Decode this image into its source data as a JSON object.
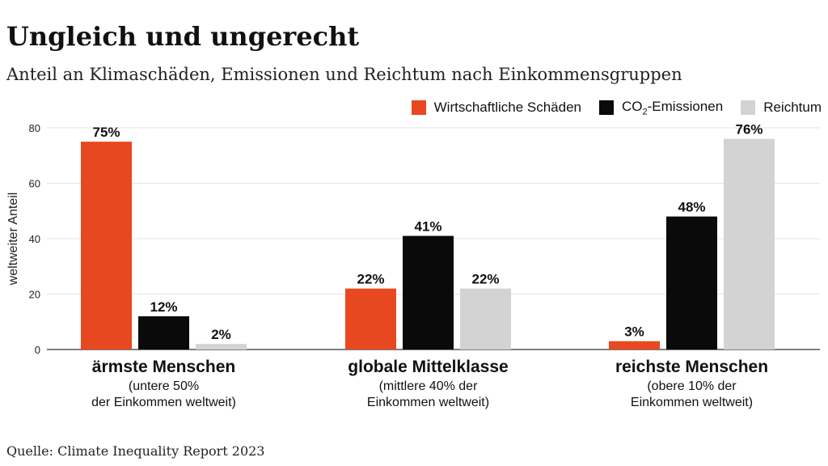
{
  "title": "Ungleich und ungerecht",
  "subtitle": "Anteil an Klimaschäden, Emissionen und Reichtum nach Einkommensgruppen",
  "source": "Quelle: Climate Inequality Report 2023",
  "legend": {
    "damage": "Wirtschaftliche Schäden",
    "co2_prefix": "CO",
    "co2_sub": "2",
    "co2_suffix": "-Emissionen",
    "wealth": "Reichtum"
  },
  "chart_data": {
    "type": "bar",
    "ylabel": "weltweiter Anteil",
    "ylim": [
      0,
      80
    ],
    "yticks": [
      0,
      20,
      40,
      60,
      80
    ],
    "grid": true,
    "legend_position": "top-right",
    "categories": [
      {
        "title": "ärmste Menschen",
        "sub1": "(untere 50%",
        "sub2": "der Einkommen weltweit)"
      },
      {
        "title": "globale Mittelklasse",
        "sub1": "(mittlere 40% der",
        "sub2": "Einkommen weltweit)"
      },
      {
        "title": "reichste Menschen",
        "sub1": "(obere 10% der",
        "sub2": "Einkommen weltweit)"
      }
    ],
    "series": [
      {
        "name": "Wirtschaftliche Schäden",
        "color": "#e8481f",
        "values": [
          75,
          22,
          3
        ],
        "labels": [
          "75%",
          "22%",
          "3%"
        ]
      },
      {
        "name": "CO2-Emissionen",
        "color": "#0a0a0a",
        "values": [
          12,
          41,
          48
        ],
        "labels": [
          "12%",
          "41%",
          "48%"
        ]
      },
      {
        "name": "Reichtum",
        "color": "#d3d3d3",
        "values": [
          2,
          22,
          76
        ],
        "labels": [
          "2%",
          "22%",
          "76%"
        ]
      }
    ]
  }
}
